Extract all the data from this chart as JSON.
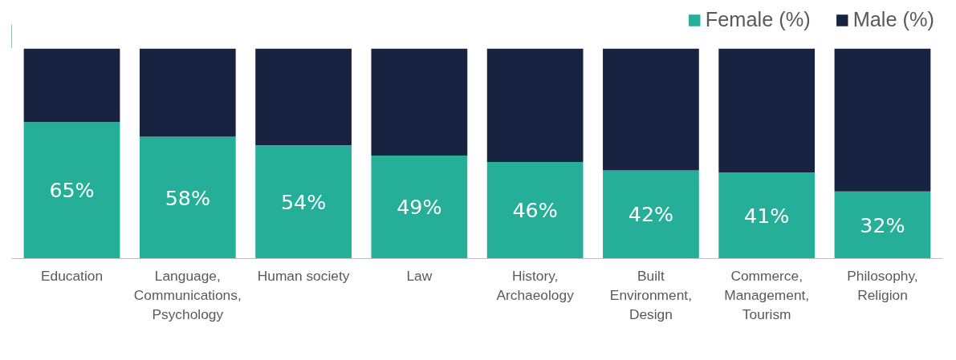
{
  "chart_data": {
    "type": "bar",
    "stacked": true,
    "categories": [
      "Education",
      "Language, Communications, Psychology",
      "Human society",
      "Law",
      "History, Archaeology",
      "Built Environment, Design",
      "Commerce, Management, Tourism",
      "Philosophy, Religion"
    ],
    "series": [
      {
        "name": "Female (%)",
        "color": "#25ae98",
        "values": [
          65,
          58,
          54,
          49,
          46,
          42,
          41,
          32
        ],
        "value_labels": [
          "65%",
          "58%",
          "54%",
          "49%",
          "46%",
          "42%",
          "41%",
          "32%"
        ]
      },
      {
        "name": "Male (%)",
        "color": "#172341",
        "values": [
          35,
          42,
          46,
          51,
          54,
          58,
          59,
          68
        ]
      }
    ],
    "ylim": [
      0,
      100
    ],
    "tick_labels": "x",
    "legend": "top right"
  }
}
